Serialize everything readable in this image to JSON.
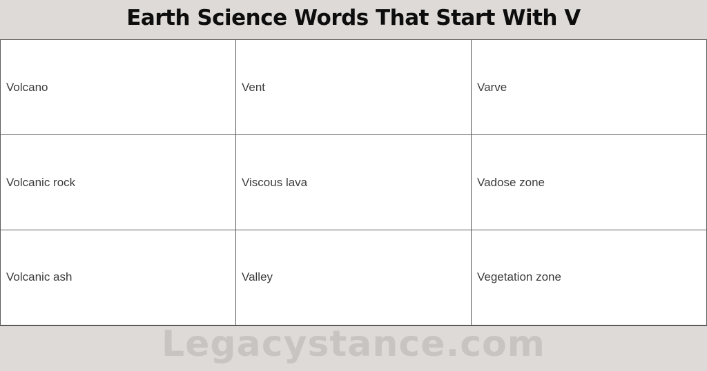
{
  "title": "Earth Science Words That Start With V",
  "table": {
    "rows": [
      [
        "Volcano",
        "Vent",
        "Varve"
      ],
      [
        "Volcanic rock",
        "Viscous lava",
        "Vadose zone"
      ],
      [
        "Volcanic ash",
        "Valley",
        "Vegetation zone"
      ]
    ]
  },
  "watermark": "Legacystance.com",
  "colors": {
    "page_background": "#dedad7",
    "cell_background": "#ffffff",
    "table_border": "#5a5a5a",
    "title_text": "#0d0d0d",
    "cell_text": "#3b3b3b",
    "watermark_text": "#c8c4c1"
  }
}
